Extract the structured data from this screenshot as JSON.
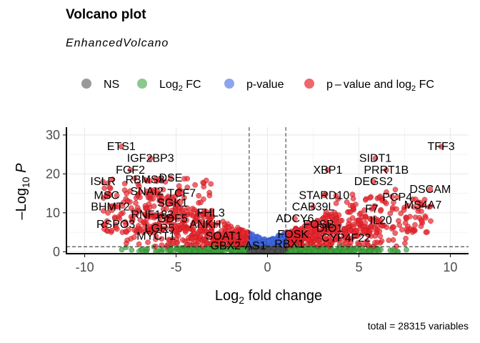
{
  "title": "Volcano plot",
  "subtitle": "EnhancedVolcano",
  "caption": "total = 28315 variables",
  "legend": [
    {
      "label": "NS",
      "color": "#808080"
    },
    {
      "label": "Log2 FC",
      "color": "#3fa43f"
    },
    {
      "label": "p-value",
      "color": "#4169e1"
    },
    {
      "label": "p – value and log2 FC",
      "color": "#e8262e"
    }
  ],
  "chart_data": {
    "type": "scatter",
    "title": "Volcano plot",
    "subtitle": "EnhancedVolcano",
    "xlabel": "Log2 fold change",
    "ylabel": "–Log10 P",
    "xlim": [
      -11,
      11
    ],
    "ylim": [
      -0.5,
      32
    ],
    "xticks": [
      -10,
      -5,
      0,
      5,
      10
    ],
    "yticks": [
      0,
      10,
      20,
      30
    ],
    "grid": true,
    "legend_position": "top",
    "thresholds": {
      "log2fc": [
        -1,
        1
      ],
      "neg_log10_p": 1.3
    },
    "total_variables": 28315,
    "labeled_points": [
      {
        "label": "ETS1",
        "x": -8.0,
        "y": 27
      },
      {
        "label": "IGF2BP3",
        "x": -6.4,
        "y": 24
      },
      {
        "label": "FGF2",
        "x": -7.5,
        "y": 21
      },
      {
        "label": "DSE",
        "x": -5.3,
        "y": 19
      },
      {
        "label": "RBMS3",
        "x": -6.7,
        "y": 18.5
      },
      {
        "label": "ISLR",
        "x": -9.0,
        "y": 18
      },
      {
        "label": "SNAI2",
        "x": -6.6,
        "y": 15.5
      },
      {
        "label": "TCF7",
        "x": -4.7,
        "y": 15
      },
      {
        "label": "MSC",
        "x": -8.8,
        "y": 14.5
      },
      {
        "label": "SGK1",
        "x": -5.2,
        "y": 12.5
      },
      {
        "label": "BHMT2",
        "x": -8.6,
        "y": 11.5
      },
      {
        "label": "RNF182",
        "x": -6.3,
        "y": 9.5
      },
      {
        "label": "FHL3",
        "x": -3.1,
        "y": 10
      },
      {
        "label": "GDF5",
        "x": -5.2,
        "y": 8.5
      },
      {
        "label": "RSPO3",
        "x": -8.3,
        "y": 7
      },
      {
        "label": "ANKH",
        "x": -3.4,
        "y": 7
      },
      {
        "label": "LGR5",
        "x": -5.9,
        "y": 6
      },
      {
        "label": "SOAT1",
        "x": -2.4,
        "y": 4
      },
      {
        "label": "MYCT1",
        "x": -6.1,
        "y": 4
      },
      {
        "label": "GBX2-AS1",
        "x": -1.6,
        "y": 1.5
      },
      {
        "label": "TFF3",
        "x": 9.5,
        "y": 27
      },
      {
        "label": "SIDT1",
        "x": 5.9,
        "y": 24
      },
      {
        "label": "XBP1",
        "x": 3.3,
        "y": 21
      },
      {
        "label": "PRRT1B",
        "x": 6.5,
        "y": 21
      },
      {
        "label": "DEGS2",
        "x": 5.8,
        "y": 18
      },
      {
        "label": "DSCAM",
        "x": 8.9,
        "y": 16
      },
      {
        "label": "STARD10",
        "x": 3.1,
        "y": 14.5
      },
      {
        "label": "PCP4",
        "x": 7.1,
        "y": 14
      },
      {
        "label": "CAB39L",
        "x": 2.5,
        "y": 11.5
      },
      {
        "label": "F7",
        "x": 5.7,
        "y": 11
      },
      {
        "label": "MS4A7",
        "x": 8.5,
        "y": 12
      },
      {
        "label": "ADCY6",
        "x": 1.5,
        "y": 8.5
      },
      {
        "label": "IL20",
        "x": 6.2,
        "y": 8
      },
      {
        "label": "FOSB",
        "x": 2.8,
        "y": 7
      },
      {
        "label": "FOSK",
        "x": 1.4,
        "y": 4.5
      },
      {
        "label": "DIO1",
        "x": 3.4,
        "y": 6
      },
      {
        "label": "CYP4F22",
        "x": 4.3,
        "y": 3.5
      },
      {
        "label": "RBX1",
        "x": 1.2,
        "y": 2
      }
    ]
  }
}
